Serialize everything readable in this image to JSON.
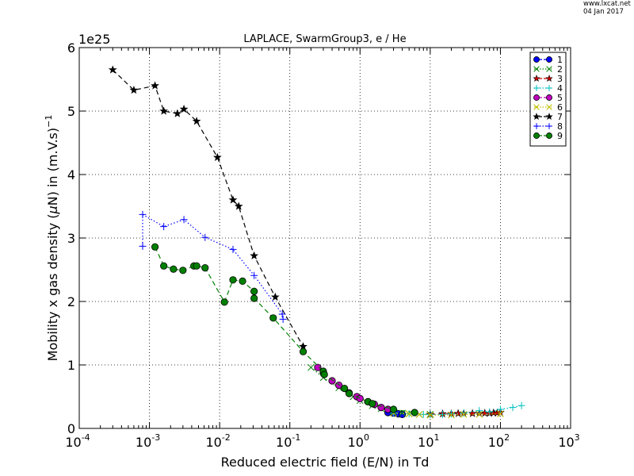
{
  "watermark": {
    "site": "www.lxcat.net",
    "date": "04 Jan 2017"
  },
  "chart_data": {
    "type": "scatter",
    "title": "LAPLACE, SwarmGroup3, e / He",
    "xlabel": "Reduced electric field (E/N) in Td",
    "ylabel_text": "Mobility x gas density (",
    "ylabel_mu": "μ",
    "ylabel_rest": "N) in (m.V.s)",
    "ylabel_sup": "−1",
    "x_scale": "log",
    "xlim": [
      0.0001,
      1000
    ],
    "ylim": [
      0,
      6e+25
    ],
    "y_offset_label": "1e25",
    "x_tick_base": "10",
    "x_tick_exps": [
      "-4",
      "-3",
      "-2",
      "-1",
      "0",
      "1",
      "2",
      "3"
    ],
    "y_tick_labels": [
      "0",
      "1",
      "2",
      "3",
      "4",
      "5",
      "6"
    ],
    "grid": true,
    "legend_position": "top-right",
    "series": [
      {
        "name": "1",
        "color": "#0000ff",
        "marker": "circle",
        "line": "dashed",
        "x": [
          2.5,
          3.0,
          3.5,
          4.0
        ],
        "y": [
          2.5e+24,
          2.4e+24,
          2.3e+24,
          2.2e+24
        ]
      },
      {
        "name": "2",
        "color": "#008000",
        "marker": "x",
        "line": "dotted",
        "x": [
          0.2,
          0.3,
          0.5,
          0.8,
          1.0,
          1.5,
          2.0,
          3.0,
          4.0,
          5.0,
          7.0,
          10
        ],
        "y": [
          9.6e+24,
          8e+24,
          6.4e+24,
          5e+24,
          4.4e+24,
          3.6e+24,
          3.1e+24,
          2.6e+24,
          2.4e+24,
          2.3e+24,
          2.2e+24,
          2.2e+24
        ]
      },
      {
        "name": "3",
        "color": "#cc0000",
        "marker": "star",
        "line": "dashed",
        "x": [
          10,
          15,
          20,
          25,
          30,
          40,
          50,
          60,
          70,
          80,
          90,
          100
        ],
        "y": [
          2.2e+24,
          2.3e+24,
          2.3e+24,
          2.35e+24,
          2.35e+24,
          2.35e+24,
          2.35e+24,
          2.4e+24,
          2.4e+24,
          2.45e+24,
          2.45e+24,
          2.5e+24
        ]
      },
      {
        "name": "4",
        "color": "#00bfbf",
        "marker": "plus",
        "line": "dotted",
        "x": [
          3.0,
          5.0,
          8.0,
          10,
          15,
          20,
          30,
          50,
          70,
          100,
          150,
          200
        ],
        "y": [
          2.4e+24,
          2.3e+24,
          2.2e+24,
          2.2e+24,
          2.2e+24,
          2.3e+24,
          2.4e+24,
          2.8e+24,
          2.6e+24,
          3e+24,
          3.3e+24,
          3.6e+24
        ]
      },
      {
        "name": "5",
        "color": "#bf00bf",
        "marker": "circle",
        "line": "dashed",
        "x": [
          0.25,
          0.3,
          0.4,
          0.5,
          0.7,
          0.9,
          1.0,
          1.3,
          1.6,
          2.0,
          2.5
        ],
        "y": [
          9.6e+24,
          8.8e+24,
          7.5e+24,
          6.8e+24,
          5.6e+24,
          5e+24,
          4.7e+24,
          4.2e+24,
          3.8e+24,
          3.3e+24,
          3e+24
        ]
      },
      {
        "name": "6",
        "color": "#bfbf00",
        "marker": "x",
        "line": "dotted",
        "x": [
          3.0,
          5.0,
          7.0,
          10,
          20,
          30,
          50,
          100
        ],
        "y": [
          2.4e+24,
          2.3e+24,
          2.2e+24,
          2.1e+24,
          2.1e+24,
          2.2e+24,
          2.2e+24,
          2.3e+24
        ]
      },
      {
        "name": "7",
        "color": "#000000",
        "marker": "star",
        "line": "dashed",
        "x": [
          0.0003,
          0.0006,
          0.0012,
          0.0016,
          0.0025,
          0.0031,
          0.0047,
          0.0093,
          0.0155,
          0.0187,
          0.031,
          0.062,
          0.155
        ],
        "y": [
          5.65e+25,
          5.33e+25,
          5.4e+25,
          5e+25,
          4.96e+25,
          5.03e+25,
          4.84e+25,
          4.27e+25,
          3.6e+25,
          3.5e+25,
          2.72e+25,
          2.07e+25,
          1.29e+25
        ]
      },
      {
        "name": "8",
        "color": "#0000ff",
        "marker": "plus",
        "line": "dotted",
        "x": [
          0.0008,
          0.0008,
          0.0016,
          0.0031,
          0.0062,
          0.0155,
          0.031,
          0.078,
          0.08
        ],
        "y": [
          2.87e+25,
          3.37e+25,
          3.18e+25,
          3.29e+25,
          3.01e+25,
          2.82e+25,
          2.41e+25,
          1.8e+25,
          1.72e+25
        ]
      },
      {
        "name": "9",
        "color": "#008000",
        "marker": "circle",
        "line": "dashed",
        "x": [
          0.0012,
          0.0016,
          0.0022,
          0.003,
          0.0043,
          0.0047,
          0.0062,
          0.0117,
          0.0155,
          0.0212,
          0.031,
          0.031,
          0.058,
          0.155,
          0.3,
          0.31,
          0.6,
          0.7,
          1.3,
          1.5,
          3.0,
          6.0
        ],
        "y": [
          2.86e+25,
          2.56e+25,
          2.51e+25,
          2.49e+25,
          2.56e+25,
          2.56e+25,
          2.53e+25,
          1.99e+25,
          2.34e+25,
          2.32e+25,
          2.16e+25,
          2.05e+25,
          1.74e+25,
          1.21e+25,
          9e+24,
          8.5e+24,
          6.3e+24,
          5.5e+24,
          4.2e+24,
          3.9e+24,
          3e+24,
          2.5e+24
        ]
      }
    ]
  }
}
